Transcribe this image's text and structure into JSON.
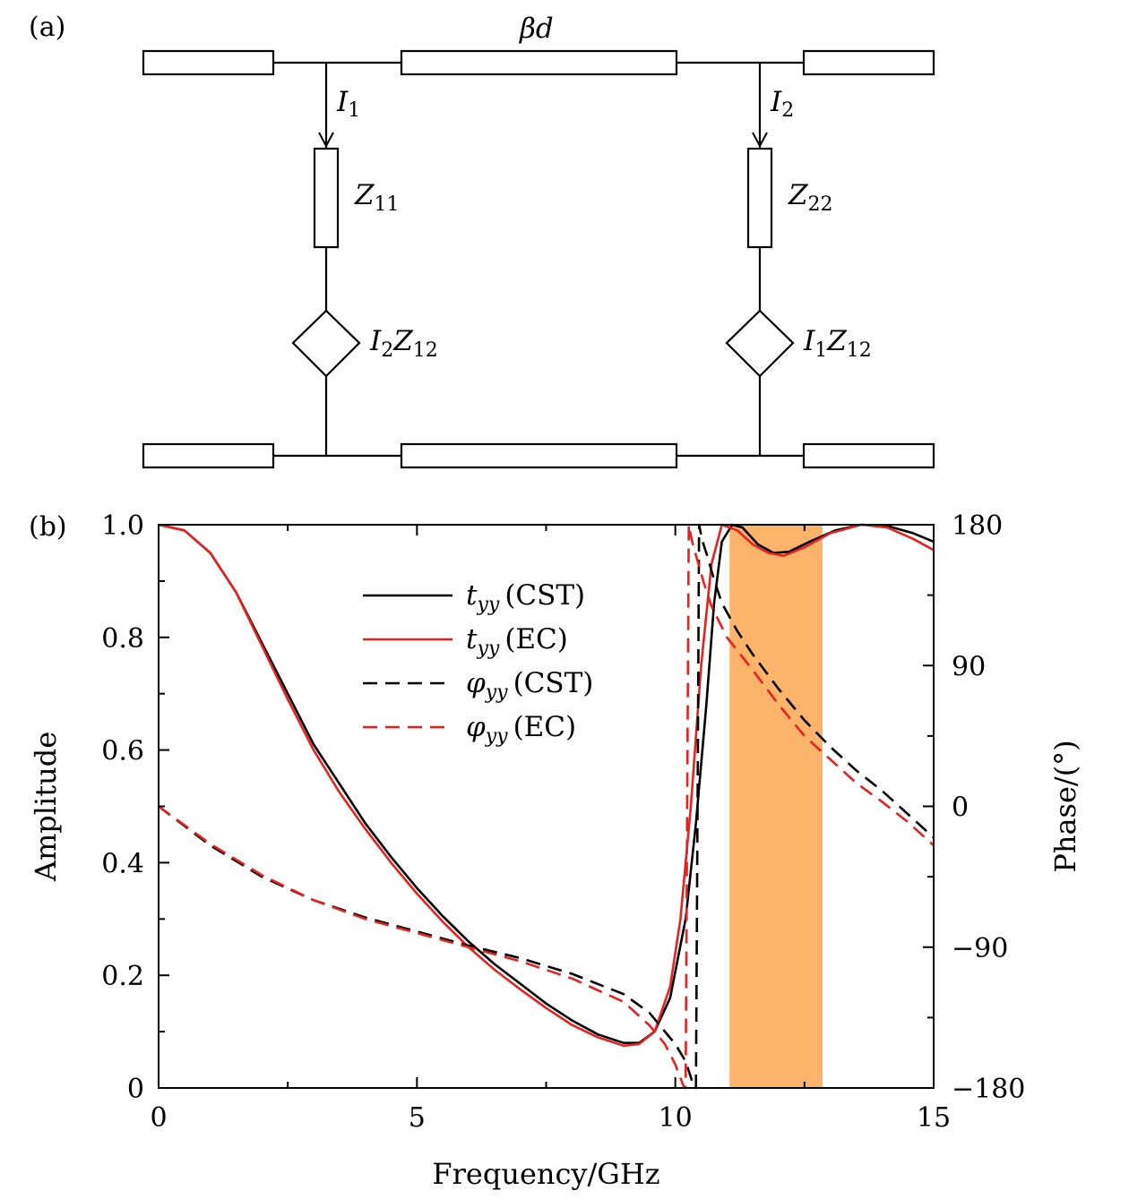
{
  "panel_a": {
    "label": "(a)",
    "beta_d": "βd",
    "current_1": {
      "symbol": "I",
      "sub": "1"
    },
    "current_2": {
      "symbol": "I",
      "sub": "2"
    },
    "impedance_11": {
      "symbol": "Z",
      "sub": "11"
    },
    "impedance_22": {
      "symbol": "Z",
      "sub": "22"
    },
    "source_left": {
      "a": "I",
      "a_sub": "2",
      "b": "Z",
      "b_sub": "12"
    },
    "source_right": {
      "a": "I",
      "a_sub": "1",
      "b": "Z",
      "b_sub": "12"
    }
  },
  "panel_b": {
    "label": "(b)"
  },
  "chart_data": {
    "type": "line",
    "xlabel": "Frequency/GHz",
    "ylabel": "Amplitude",
    "y2label": "Phase/(°)",
    "xlim": [
      0,
      15
    ],
    "ylim": [
      0,
      1
    ],
    "y2lim": [
      -180,
      180
    ],
    "xticks": [
      "0",
      "5",
      "10",
      "15"
    ],
    "yticks": [
      "0",
      "0.2",
      "0.4",
      "0.6",
      "0.8",
      "1.0"
    ],
    "y2ticks": [
      "−180",
      "−90",
      "0",
      "90",
      "180"
    ],
    "highlight_band": {
      "x": [
        11.05,
        12.85
      ],
      "color": "#fbb46a"
    },
    "grid": false,
    "legend_position": "upper-center",
    "series": [
      {
        "name": "t_yy (CST)",
        "legend_sym": "t",
        "legend_sub": "yy",
        "legend_suffix": "(CST)",
        "axis": "left",
        "color": "#000000",
        "dash": "solid",
        "points": [
          [
            0,
            1.0
          ],
          [
            0.5,
            0.99
          ],
          [
            1,
            0.95
          ],
          [
            1.5,
            0.88
          ],
          [
            2,
            0.79
          ],
          [
            2.5,
            0.7
          ],
          [
            3,
            0.61
          ],
          [
            3.5,
            0.54
          ],
          [
            4,
            0.47
          ],
          [
            4.5,
            0.41
          ],
          [
            5,
            0.355
          ],
          [
            5.5,
            0.305
          ],
          [
            6,
            0.26
          ],
          [
            6.5,
            0.22
          ],
          [
            7,
            0.185
          ],
          [
            7.5,
            0.15
          ],
          [
            8,
            0.12
          ],
          [
            8.5,
            0.095
          ],
          [
            9,
            0.08
          ],
          [
            9.3,
            0.08
          ],
          [
            9.6,
            0.1
          ],
          [
            9.9,
            0.16
          ],
          [
            10.2,
            0.3
          ],
          [
            10.4,
            0.47
          ],
          [
            10.6,
            0.68
          ],
          [
            10.75,
            0.86
          ],
          [
            10.9,
            0.97
          ],
          [
            11.1,
            1.0
          ],
          [
            11.3,
            0.995
          ],
          [
            11.6,
            0.965
          ],
          [
            11.9,
            0.95
          ],
          [
            12.2,
            0.952
          ],
          [
            12.6,
            0.97
          ],
          [
            13.1,
            0.99
          ],
          [
            13.6,
            1.0
          ],
          [
            14.1,
            0.998
          ],
          [
            14.6,
            0.985
          ],
          [
            15,
            0.97
          ]
        ]
      },
      {
        "name": "t_yy (EC)",
        "legend_sym": "t",
        "legend_sub": "yy",
        "legend_suffix": "(EC)",
        "axis": "left",
        "color": "#e8201e",
        "dash": "solid",
        "points": [
          [
            0,
            1.0
          ],
          [
            0.5,
            0.99
          ],
          [
            1,
            0.95
          ],
          [
            1.5,
            0.88
          ],
          [
            2,
            0.785
          ],
          [
            2.5,
            0.69
          ],
          [
            3,
            0.6
          ],
          [
            3.5,
            0.525
          ],
          [
            4,
            0.46
          ],
          [
            4.5,
            0.4
          ],
          [
            5,
            0.345
          ],
          [
            5.5,
            0.295
          ],
          [
            6,
            0.25
          ],
          [
            6.5,
            0.21
          ],
          [
            7,
            0.175
          ],
          [
            7.5,
            0.142
          ],
          [
            8,
            0.112
          ],
          [
            8.5,
            0.09
          ],
          [
            9,
            0.075
          ],
          [
            9.3,
            0.078
          ],
          [
            9.6,
            0.1
          ],
          [
            9.9,
            0.18
          ],
          [
            10.1,
            0.3
          ],
          [
            10.3,
            0.5
          ],
          [
            10.5,
            0.75
          ],
          [
            10.7,
            0.93
          ],
          [
            10.9,
            1.0
          ],
          [
            11.2,
            0.99
          ],
          [
            11.5,
            0.965
          ],
          [
            11.8,
            0.95
          ],
          [
            12.1,
            0.945
          ],
          [
            12.5,
            0.96
          ],
          [
            13,
            0.985
          ],
          [
            13.6,
            1.0
          ],
          [
            14.1,
            0.995
          ],
          [
            14.6,
            0.975
          ],
          [
            15,
            0.955
          ]
        ]
      },
      {
        "name": "φ_yy (CST)",
        "legend_sym": "φ",
        "legend_sub": "yy",
        "legend_suffix": "(CST)",
        "axis": "right",
        "color": "#000000",
        "dash": "dashed",
        "points": [
          [
            0,
            0
          ],
          [
            1,
            -25
          ],
          [
            2,
            -45
          ],
          [
            3,
            -60
          ],
          [
            4,
            -71
          ],
          [
            5,
            -80
          ],
          [
            6,
            -89
          ],
          [
            7,
            -97
          ],
          [
            8,
            -107
          ],
          [
            9,
            -120
          ],
          [
            9.5,
            -132
          ],
          [
            10,
            -152
          ],
          [
            10.2,
            -163
          ],
          [
            10.35,
            -178
          ],
          [
            10.38,
            -180
          ],
          [
            10.4,
            -180
          ],
          [
            10.43,
            0
          ],
          [
            10.46,
            180
          ],
          [
            10.52,
            170
          ],
          [
            10.62,
            160
          ],
          [
            10.75,
            145
          ],
          [
            10.9,
            130
          ],
          [
            11.2,
            112
          ],
          [
            11.5,
            97
          ],
          [
            12,
            75
          ],
          [
            12.5,
            55
          ],
          [
            13,
            38
          ],
          [
            13.5,
            23
          ],
          [
            14,
            10
          ],
          [
            14.5,
            -5
          ],
          [
            15,
            -20
          ]
        ]
      },
      {
        "name": "φ_yy (EC)",
        "legend_sym": "φ",
        "legend_sub": "yy",
        "legend_suffix": "(EC)",
        "axis": "right",
        "color": "#e8201e",
        "dash": "dashed",
        "points": [
          [
            0,
            0
          ],
          [
            1,
            -24
          ],
          [
            2,
            -44
          ],
          [
            3,
            -60
          ],
          [
            4,
            -72
          ],
          [
            5,
            -81
          ],
          [
            6,
            -90
          ],
          [
            7,
            -99
          ],
          [
            8,
            -110
          ],
          [
            9,
            -125
          ],
          [
            9.5,
            -140
          ],
          [
            9.8,
            -152
          ],
          [
            10.0,
            -165
          ],
          [
            10.15,
            -178
          ],
          [
            10.18,
            -180
          ],
          [
            10.2,
            -180
          ],
          [
            10.23,
            0
          ],
          [
            10.26,
            180
          ],
          [
            10.32,
            170
          ],
          [
            10.42,
            158
          ],
          [
            10.55,
            143
          ],
          [
            10.7,
            128
          ],
          [
            11.0,
            108
          ],
          [
            11.5,
            87
          ],
          [
            12,
            65
          ],
          [
            12.5,
            45
          ],
          [
            13,
            30
          ],
          [
            13.5,
            15
          ],
          [
            14,
            3
          ],
          [
            14.5,
            -10
          ],
          [
            15,
            -25
          ]
        ]
      }
    ]
  }
}
